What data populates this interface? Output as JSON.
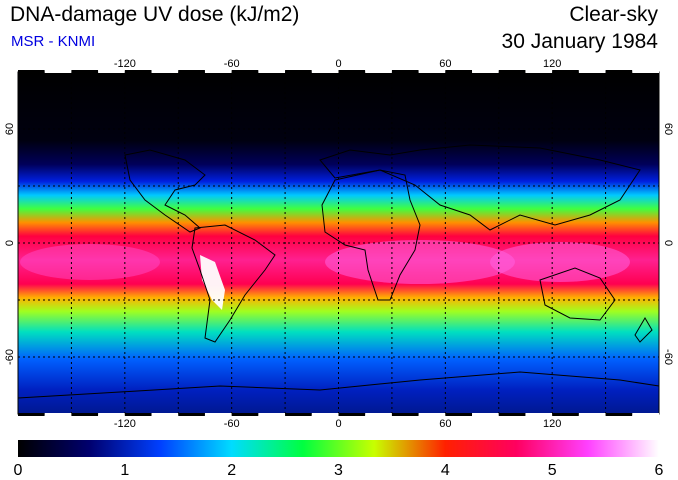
{
  "header": {
    "title": "DNA-damage UV dose (kJ/m2)",
    "subtitle": "MSR - KNMI",
    "mode": "Clear-sky",
    "date": "30 January 1984"
  },
  "map": {
    "lon_ticks": [
      "-120",
      "-60",
      "0",
      "60",
      "120"
    ],
    "lon_values": [
      -120,
      -60,
      0,
      60,
      120
    ],
    "lat_ticks": [
      "60",
      "0",
      "-60"
    ],
    "lat_values": [
      60,
      0,
      -60
    ],
    "lon_range": [
      -180,
      180
    ],
    "lat_range": [
      -90,
      90
    ],
    "gridlines": "dashed every 30 degrees"
  },
  "colorbar": {
    "labels": [
      "0",
      "1",
      "2",
      "3",
      "4",
      "5",
      "6"
    ],
    "min": 0,
    "max": 6,
    "colors": [
      "#000000",
      "#00006e",
      "#0040ff",
      "#00dcff",
      "#00ff40",
      "#c8ff00",
      "#ff2000",
      "#ff0060",
      "#ff40ff",
      "#ffffff"
    ]
  }
}
